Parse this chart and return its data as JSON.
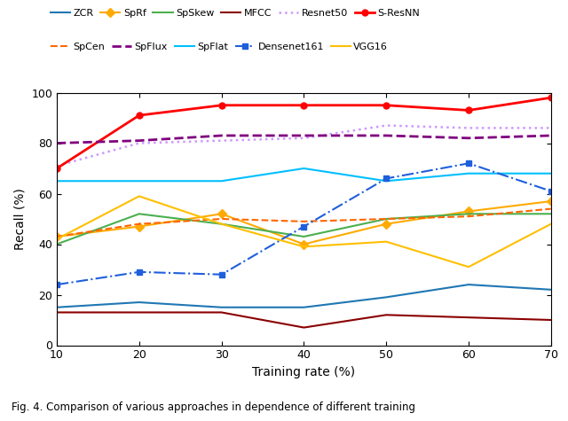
{
  "x": [
    10,
    20,
    30,
    40,
    50,
    60,
    70
  ],
  "series": {
    "ZCR": {
      "y": [
        15,
        17,
        15,
        15,
        19,
        24,
        22
      ],
      "color": "#1f77b4",
      "linestyle": "-",
      "marker": null,
      "lw": 1.5
    },
    "SpRf": {
      "y": [
        43,
        47,
        52,
        40,
        48,
        53,
        57
      ],
      "color": "#ffaa00",
      "linestyle": "-",
      "marker": "D",
      "lw": 1.5
    },
    "SpSkew": {
      "y": [
        40,
        52,
        48,
        43,
        50,
        52,
        52
      ],
      "color": "#4caf50",
      "linestyle": "-",
      "marker": null,
      "lw": 1.5
    },
    "MFCC": {
      "y": [
        13,
        13,
        13,
        7,
        12,
        11,
        10
      ],
      "color": "#8b0000",
      "linestyle": "-",
      "marker": null,
      "lw": 1.5
    },
    "Resnet50": {
      "y": [
        71,
        80,
        81,
        82,
        87,
        86,
        86
      ],
      "color": "#cc99ff",
      "linestyle": ":",
      "marker": null,
      "lw": 1.8
    },
    "S-ResNN": {
      "y": [
        70,
        91,
        95,
        95,
        95,
        93,
        98
      ],
      "color": "#ff0000",
      "linestyle": "-",
      "marker": "o",
      "lw": 2.0
    },
    "SpCen": {
      "y": [
        43,
        48,
        50,
        49,
        50,
        51,
        54
      ],
      "color": "#ff6600",
      "linestyle": "--",
      "marker": null,
      "lw": 1.5
    },
    "SpFlux": {
      "y": [
        80,
        81,
        83,
        83,
        83,
        82,
        83
      ],
      "color": "#800080",
      "linestyle": "--",
      "marker": null,
      "lw": 2.0
    },
    "SpFlat": {
      "y": [
        65,
        65,
        65,
        70,
        65,
        68,
        68
      ],
      "color": "#00bfff",
      "linestyle": "-",
      "marker": null,
      "lw": 1.5
    },
    "Densenet161": {
      "y": [
        24,
        29,
        28,
        47,
        66,
        72,
        61
      ],
      "color": "#1f5fdd",
      "linestyle": "-.",
      "marker": "s",
      "lw": 1.5
    },
    "VGG16": {
      "y": [
        42,
        59,
        48,
        39,
        41,
        31,
        48
      ],
      "color": "#ffbf00",
      "linestyle": "-",
      "marker": null,
      "lw": 1.5
    }
  },
  "legend_row1": [
    "ZCR",
    "SpRf",
    "SpSkew",
    "MFCC",
    "Resnet50",
    "S-ResNN"
  ],
  "legend_row2": [
    "SpCen",
    "SpFlux",
    "SpFlat",
    "Densenet161",
    "VGG16"
  ],
  "xlabel": "Training rate (%)",
  "ylabel": "Recall (%)",
  "ylim": [
    0,
    100
  ],
  "xlim": [
    10,
    70
  ],
  "xticks": [
    10,
    20,
    30,
    40,
    50,
    60,
    70
  ],
  "yticks": [
    0,
    20,
    40,
    60,
    80,
    100
  ],
  "figsize": [
    6.4,
    4.75
  ],
  "dpi": 100,
  "caption": "Fig. 4. Comparison of various approaches in dependence of different training"
}
